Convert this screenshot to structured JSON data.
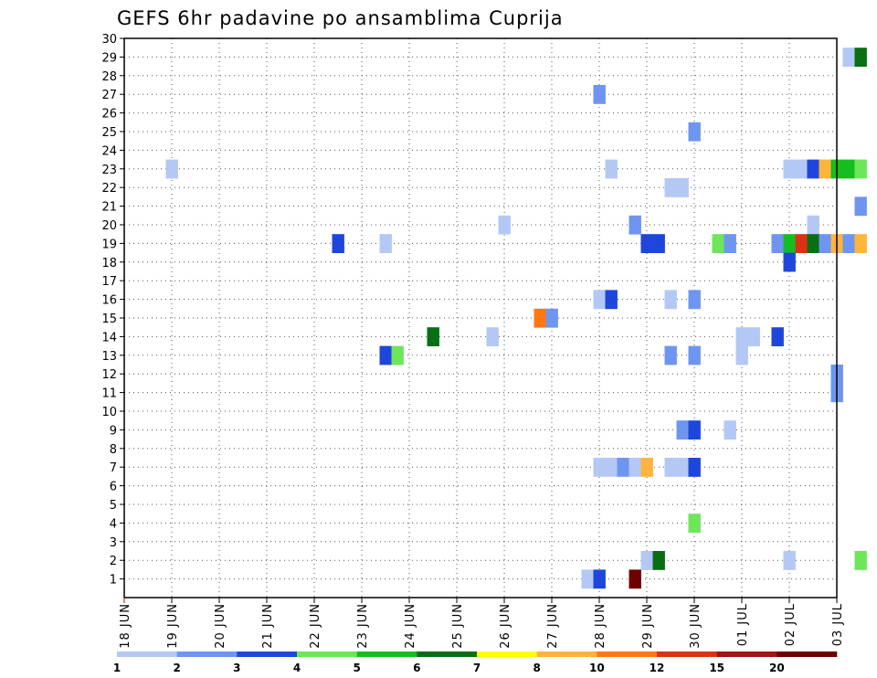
{
  "chart_data": {
    "type": "heatmap",
    "title": "GEFS 6hr padavine po ansamblima Cuprija",
    "x_tick_labels": [
      "18 JUN",
      "19 JUN",
      "20 JUN",
      "21 JUN",
      "22 JUN",
      "23 JUN",
      "24 JUN",
      "25 JUN",
      "26 JUN",
      "27 JUN",
      "28 JUN",
      "29 JUN",
      "30 JUN",
      "01 JUL",
      "02 JUL",
      "03 JUL"
    ],
    "y_tick_labels": [
      "1",
      "2",
      "3",
      "4",
      "5",
      "6",
      "7",
      "8",
      "9",
      "10",
      "11",
      "12",
      "13",
      "14",
      "15",
      "16",
      "17",
      "18",
      "19",
      "20",
      "21",
      "22",
      "23",
      "24",
      "25",
      "26",
      "27",
      "28",
      "29",
      "30"
    ],
    "ylim": [
      0,
      30
    ],
    "grid": true,
    "legend": {
      "position": "bottom",
      "thresholds": [
        "1",
        "2",
        "3",
        "4",
        "5",
        "6",
        "7",
        "8",
        "10",
        "12",
        "15",
        "20"
      ],
      "colors": [
        "#b4c8f5",
        "#6e96f0",
        "#1e46dc",
        "#6ee65a",
        "#14be1e",
        "#0a6e14",
        "#ffff00",
        "#ffb43c",
        "#ff7814",
        "#dc3214",
        "#a01414",
        "#6e0000"
      ]
    },
    "cells": [
      {
        "member": 29,
        "step": 61,
        "level": 0
      },
      {
        "member": 29,
        "step": 62,
        "level": 5
      },
      {
        "member": 27,
        "step": 40,
        "level": 1
      },
      {
        "member": 25,
        "step": 48,
        "level": 1
      },
      {
        "member": 23,
        "step": 4,
        "level": 0
      },
      {
        "member": 23,
        "step": 41,
        "level": 0
      },
      {
        "member": 23,
        "step": 56,
        "level": 0
      },
      {
        "member": 23,
        "step": 57,
        "level": 0
      },
      {
        "member": 23,
        "step": 58,
        "level": 2
      },
      {
        "member": 23,
        "step": 59,
        "level": 7
      },
      {
        "member": 23,
        "step": 60,
        "level": 4
      },
      {
        "member": 23,
        "step": 61,
        "level": 4
      },
      {
        "member": 23,
        "step": 62,
        "level": 3
      },
      {
        "member": 22,
        "step": 46,
        "level": 0
      },
      {
        "member": 22,
        "step": 47,
        "level": 0
      },
      {
        "member": 21,
        "step": 62,
        "level": 1
      },
      {
        "member": 20,
        "step": 32,
        "level": 0
      },
      {
        "member": 20,
        "step": 43,
        "level": 1
      },
      {
        "member": 20,
        "step": 58,
        "level": 0
      },
      {
        "member": 19,
        "step": 18,
        "level": 2
      },
      {
        "member": 19,
        "step": 22,
        "level": 0
      },
      {
        "member": 19,
        "step": 44,
        "level": 2
      },
      {
        "member": 19,
        "step": 45,
        "level": 2
      },
      {
        "member": 19,
        "step": 50,
        "level": 3
      },
      {
        "member": 19,
        "step": 51,
        "level": 1
      },
      {
        "member": 19,
        "step": 55,
        "level": 1
      },
      {
        "member": 19,
        "step": 56,
        "level": 4
      },
      {
        "member": 19,
        "step": 57,
        "level": 9
      },
      {
        "member": 19,
        "step": 58,
        "level": 5
      },
      {
        "member": 19,
        "step": 59,
        "level": 1
      },
      {
        "member": 19,
        "step": 60,
        "level": 7
      },
      {
        "member": 19,
        "step": 61,
        "level": 1
      },
      {
        "member": 19,
        "step": 62,
        "level": 7
      },
      {
        "member": 18,
        "step": 56,
        "level": 2
      },
      {
        "member": 16,
        "step": 40,
        "level": 0
      },
      {
        "member": 16,
        "step": 41,
        "level": 2
      },
      {
        "member": 16,
        "step": 46,
        "level": 0
      },
      {
        "member": 16,
        "step": 48,
        "level": 1
      },
      {
        "member": 15,
        "step": 35,
        "level": 8
      },
      {
        "member": 15,
        "step": 36,
        "level": 1
      },
      {
        "member": 14,
        "step": 26,
        "level": 5
      },
      {
        "member": 14,
        "step": 31,
        "level": 0
      },
      {
        "member": 14,
        "step": 52,
        "level": 0
      },
      {
        "member": 14,
        "step": 53,
        "level": 0
      },
      {
        "member": 14,
        "step": 55,
        "level": 2
      },
      {
        "member": 13,
        "step": 22,
        "level": 2
      },
      {
        "member": 13,
        "step": 23,
        "level": 3
      },
      {
        "member": 13,
        "step": 46,
        "level": 1
      },
      {
        "member": 13,
        "step": 48,
        "level": 1
      },
      {
        "member": 13,
        "step": 52,
        "level": 0
      },
      {
        "member": 12,
        "step": 60,
        "level": 1
      },
      {
        "member": 11,
        "step": 60,
        "level": 1
      },
      {
        "member": 9,
        "step": 47,
        "level": 1
      },
      {
        "member": 9,
        "step": 48,
        "level": 2
      },
      {
        "member": 9,
        "step": 51,
        "level": 0
      },
      {
        "member": 7,
        "step": 40,
        "level": 0
      },
      {
        "member": 7,
        "step": 41,
        "level": 0
      },
      {
        "member": 7,
        "step": 42,
        "level": 1
      },
      {
        "member": 7,
        "step": 43,
        "level": 0
      },
      {
        "member": 7,
        "step": 44,
        "level": 7
      },
      {
        "member": 7,
        "step": 46,
        "level": 0
      },
      {
        "member": 7,
        "step": 47,
        "level": 0
      },
      {
        "member": 7,
        "step": 48,
        "level": 2
      },
      {
        "member": 4,
        "step": 48,
        "level": 3
      },
      {
        "member": 2,
        "step": 44,
        "level": 0
      },
      {
        "member": 2,
        "step": 45,
        "level": 5
      },
      {
        "member": 2,
        "step": 56,
        "level": 0
      },
      {
        "member": 2,
        "step": 62,
        "level": 3
      },
      {
        "member": 1,
        "step": 39,
        "level": 0
      },
      {
        "member": 1,
        "step": 40,
        "level": 2
      },
      {
        "member": 1,
        "step": 43,
        "level": 11
      }
    ]
  }
}
